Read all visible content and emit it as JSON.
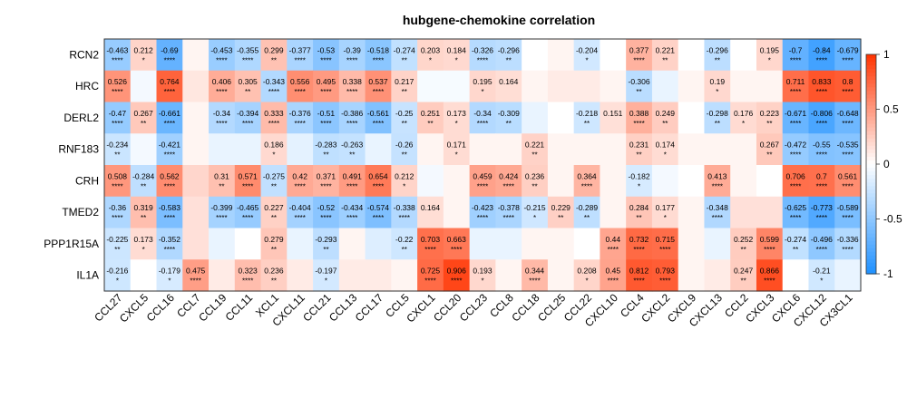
{
  "chart_data": {
    "type": "heatmap",
    "title": "hubgene-chemokine correlation",
    "rows": [
      "RCN2",
      "HRC",
      "DERL2",
      "RNF183",
      "CRH",
      "TMED2",
      "PPP1R15A",
      "IL1A"
    ],
    "columns": [
      "CCL27",
      "CXCL5",
      "CCL16",
      "CCL7",
      "CCL19",
      "CCL11",
      "XCL1",
      "CXCL11",
      "CCL21",
      "CCL13",
      "CCL17",
      "CCL5",
      "CXCL1",
      "CCL20",
      "CCL23",
      "CCL8",
      "CCL18",
      "CCL25",
      "CCL22",
      "CXCL10",
      "CCL4",
      "CXCL2",
      "CXCL9",
      "CXCL13",
      "CCL2",
      "CXCL3",
      "CXCL6",
      "CXCL12",
      "CX3CL1"
    ],
    "values": [
      [
        -0.463,
        0.212,
        -0.69,
        0.05,
        -0.453,
        -0.355,
        0.299,
        -0.377,
        -0.53,
        -0.39,
        -0.518,
        -0.274,
        0.203,
        0.184,
        -0.326,
        -0.296,
        0.0,
        0.05,
        -0.204,
        0.0,
        0.377,
        0.221,
        0.0,
        -0.296,
        0.0,
        0.195,
        -0.7,
        -0.84,
        -0.679
      ],
      [
        0.526,
        -0.05,
        0.764,
        0.12,
        0.406,
        0.305,
        -0.343,
        0.556,
        0.495,
        0.338,
        0.537,
        0.217,
        -0.04,
        -0.04,
        0.195,
        0.164,
        0.05,
        0.1,
        0.1,
        0.05,
        -0.306,
        -0.1,
        0.05,
        0.19,
        0.05,
        0.05,
        0.711,
        0.833,
        0.8
      ],
      [
        -0.47,
        0.267,
        -0.661,
        0.05,
        -0.34,
        -0.394,
        0.333,
        -0.376,
        -0.51,
        -0.386,
        -0.561,
        -0.25,
        0.251,
        0.173,
        -0.34,
        -0.309,
        -0.1,
        0.0,
        -0.218,
        0.151,
        0.388,
        0.249,
        0.0,
        -0.298,
        0.176,
        0.223,
        -0.671,
        -0.806,
        -0.648
      ],
      [
        -0.234,
        -0.05,
        -0.421,
        0.05,
        -0.1,
        -0.1,
        0.186,
        -0.12,
        -0.283,
        -0.263,
        -0.1,
        -0.26,
        0.05,
        0.171,
        0.05,
        0.05,
        0.221,
        0.05,
        0.05,
        0.05,
        0.231,
        0.174,
        0.05,
        0.05,
        0.05,
        0.267,
        -0.472,
        -0.55,
        -0.535
      ],
      [
        0.508,
        -0.284,
        0.562,
        0.2,
        0.31,
        0.571,
        -0.275,
        0.42,
        0.371,
        0.491,
        0.654,
        0.212,
        -0.05,
        0.05,
        0.459,
        0.424,
        0.236,
        0.05,
        0.364,
        0.05,
        -0.182,
        -0.05,
        0.0,
        0.413,
        0.05,
        0.0,
        0.706,
        0.7,
        0.561
      ],
      [
        -0.36,
        0.319,
        -0.583,
        0.15,
        -0.399,
        -0.465,
        0.227,
        -0.404,
        -0.52,
        -0.434,
        -0.574,
        -0.338,
        0.164,
        0.05,
        -0.423,
        -0.378,
        -0.215,
        0.229,
        -0.289,
        0.05,
        0.284,
        0.177,
        0.05,
        -0.348,
        0.15,
        0.15,
        -0.625,
        -0.773,
        -0.589
      ],
      [
        -0.225,
        0.173,
        -0.352,
        0.15,
        -0.1,
        0.0,
        0.279,
        -0.1,
        -0.293,
        0.05,
        -0.15,
        -0.22,
        0.703,
        0.663,
        -0.1,
        -0.1,
        0.05,
        0.05,
        0.0,
        0.44,
        0.732,
        0.715,
        0.05,
        -0.1,
        0.252,
        0.599,
        -0.274,
        -0.496,
        -0.336
      ],
      [
        -0.216,
        0.0,
        -0.179,
        0.475,
        0.1,
        0.323,
        0.236,
        0.1,
        -0.197,
        0.1,
        0.1,
        0.05,
        0.725,
        0.906,
        0.193,
        0.05,
        0.344,
        0.05,
        0.208,
        0.45,
        0.812,
        0.793,
        0.05,
        0.1,
        0.247,
        0.866,
        0.0,
        -0.21,
        -0.1
      ]
    ],
    "value_labels": [
      [
        "-0.463",
        "0.212",
        "-0.69",
        "",
        "-0.453",
        "-0.355",
        "0.299",
        "-0.377",
        "-0.53",
        "-0.39",
        "-0.518",
        "-0.274",
        "0.203",
        "0.184",
        "-0.326",
        "-0.296",
        "",
        "",
        "-0.204",
        "",
        "0.377",
        "0.221",
        "",
        "-0.296",
        "",
        "0.195",
        "-0.7",
        "-0.84",
        "-0.679"
      ],
      [
        "0.526",
        "",
        "0.764",
        "",
        "0.406",
        "0.305",
        "-0.343",
        "0.556",
        "0.495",
        "0.338",
        "0.537",
        "0.217",
        "",
        "",
        "0.195",
        "0.164",
        "",
        "",
        "",
        "",
        "-0.306",
        "",
        "",
        "0.19",
        "",
        "",
        "0.711",
        "0.833",
        "0.8"
      ],
      [
        "-0.47",
        "0.267",
        "-0.661",
        "",
        "-0.34",
        "-0.394",
        "0.333",
        "-0.376",
        "-0.51",
        "-0.386",
        "-0.561",
        "-0.25",
        "0.251",
        "0.173",
        "-0.34",
        "-0.309",
        "",
        "",
        "-0.218",
        "0.151",
        "0.388",
        "0.249",
        "",
        "-0.298",
        "0.176",
        "0.223",
        "-0.671",
        "-0.806",
        "-0.648"
      ],
      [
        "-0.234",
        "",
        "-0.421",
        "",
        "",
        "",
        "0.186",
        "",
        "-0.283",
        "-0.263",
        "",
        "-0.26",
        "",
        "0.171",
        "",
        "",
        "0.221",
        "",
        "",
        "",
        "0.231",
        "0.174",
        "",
        "",
        "",
        "0.267",
        "-0.472",
        "-0.55",
        "-0.535"
      ],
      [
        "0.508",
        "-0.284",
        "0.562",
        "",
        "0.31",
        "0.571",
        "-0.275",
        "0.42",
        "0.371",
        "0.491",
        "0.654",
        "0.212",
        "",
        "",
        "0.459",
        "0.424",
        "0.236",
        "",
        "0.364",
        "",
        "-0.182",
        "",
        "",
        "0.413",
        "",
        "",
        "0.706",
        "0.7",
        "0.561"
      ],
      [
        "-0.36",
        "0.319",
        "-0.583",
        "",
        "-0.399",
        "-0.465",
        "0.227",
        "-0.404",
        "-0.52",
        "-0.434",
        "-0.574",
        "-0.338",
        "0.164",
        "",
        "-0.423",
        "-0.378",
        "-0.215",
        "0.229",
        "-0.289",
        "",
        "0.284",
        "0.177",
        "",
        "-0.348",
        "",
        "",
        "-0.625",
        "-0.773",
        "-0.589"
      ],
      [
        "-0.225",
        "0.173",
        "-0.352",
        "",
        "",
        "",
        "0.279",
        "",
        "-0.293",
        "",
        "",
        "-0.22",
        "0.703",
        "0.663",
        "",
        "",
        "",
        "",
        "",
        "0.44",
        "0.732",
        "0.715",
        "",
        "",
        "0.252",
        "0.599",
        "-0.274",
        "-0.496",
        "-0.336"
      ],
      [
        "-0.216",
        "",
        "-0.179",
        "0.475",
        "",
        "0.323",
        "0.236",
        "",
        "-0.197",
        "",
        "",
        "",
        "0.725",
        "0.906",
        "0.193",
        "",
        "0.344",
        "",
        "0.208",
        "0.45",
        "0.812",
        "0.793",
        "",
        "",
        "0.247",
        "0.866",
        "",
        "-0.21",
        ""
      ]
    ],
    "significance": [
      [
        "****",
        "*",
        "****",
        "",
        "****",
        "****",
        "**",
        "****",
        "****",
        "****",
        "****",
        "**",
        "*",
        "*",
        "****",
        "**",
        "",
        "",
        "*",
        "",
        "****",
        "**",
        "",
        "**",
        "",
        "*",
        "****",
        "****",
        "****"
      ],
      [
        "****",
        "",
        "****",
        "",
        "****",
        "**",
        "****",
        "****",
        "****",
        "****",
        "****",
        "**",
        "",
        "",
        "*",
        "",
        "",
        "",
        "",
        "",
        "**",
        "",
        "",
        "*",
        "",
        "",
        "****",
        "****",
        "****"
      ],
      [
        "****",
        "**",
        "****",
        "",
        "****",
        "****",
        "****",
        "****",
        "****",
        "****",
        "****",
        "**",
        "**",
        "*",
        "****",
        "**",
        "",
        "",
        "**",
        "",
        "****",
        "**",
        "",
        "**",
        "*",
        "**",
        "****",
        "****",
        "****"
      ],
      [
        "**",
        "",
        "****",
        "",
        "",
        "",
        "*",
        "",
        "**",
        "**",
        "",
        "**",
        "",
        "*",
        "",
        "",
        "**",
        "",
        "",
        "",
        "**",
        "*",
        "",
        "",
        "",
        "**",
        "****",
        "****",
        "****"
      ],
      [
        "****",
        "**",
        "****",
        "",
        "**",
        "****",
        "**",
        "****",
        "****",
        "****",
        "****",
        "*",
        "",
        "",
        "****",
        "****",
        "**",
        "",
        "****",
        "",
        "*",
        "",
        "",
        "****",
        "",
        "",
        "****",
        "****",
        "****"
      ],
      [
        "****",
        "**",
        "****",
        "",
        "****",
        "****",
        "**",
        "****",
        "****",
        "****",
        "****",
        "****",
        "",
        "",
        "****",
        "****",
        "*",
        "**",
        "**",
        "",
        "**",
        "*",
        "",
        "****",
        "",
        "",
        "****",
        "****",
        "****"
      ],
      [
        "**",
        "*",
        "****",
        "",
        "",
        "",
        "**",
        "",
        "**",
        "",
        "",
        "**",
        "****",
        "****",
        "",
        "",
        "",
        "",
        "",
        "****",
        "****",
        "****",
        "",
        "",
        "**",
        "****",
        "**",
        "****",
        "****"
      ],
      [
        "*",
        "",
        "*",
        "****",
        "",
        "****",
        "**",
        "",
        "*",
        "",
        "",
        "",
        "****",
        "****",
        "*",
        "",
        "****",
        "",
        "*",
        "****",
        "****",
        "****",
        "",
        "",
        "**",
        "****",
        "",
        "*",
        ""
      ]
    ],
    "colorbar": {
      "range": [
        -1,
        1
      ],
      "ticks": [
        1,
        0.5,
        0,
        -0.5,
        -1
      ],
      "tick_labels": [
        "1",
        "0.5",
        "0",
        "-0.5",
        "-1"
      ],
      "colors": {
        "negative": "#1E90FF",
        "zero": "#FFFFFF",
        "positive": "#FF3300"
      }
    }
  }
}
